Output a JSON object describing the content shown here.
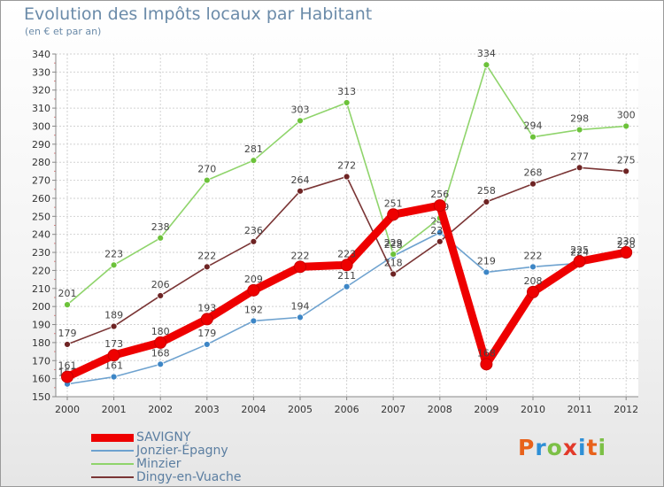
{
  "chart_data": {
    "type": "line",
    "title": "Evolution des Impôts locaux par Habitant",
    "subtitle": "(en € et par an)",
    "xlabel": "",
    "ylabel": "",
    "categories": [
      "2000",
      "2001",
      "2002",
      "2003",
      "2004",
      "2005",
      "2006",
      "2007",
      "2008",
      "2009",
      "2010",
      "2011",
      "2012"
    ],
    "ylim": [
      150,
      340
    ],
    "yticks": [
      150,
      160,
      170,
      180,
      190,
      200,
      210,
      220,
      230,
      240,
      250,
      260,
      270,
      280,
      290,
      300,
      310,
      320,
      330,
      340
    ],
    "grid": true,
    "legend_position": "bottom-left",
    "series": [
      {
        "name": "Jonzier-Épagny",
        "color": "#6ea2cf",
        "marker": "#3d86c6",
        "values": [
          157,
          161,
          168,
          179,
          192,
          194,
          211,
          228,
          241,
          219,
          222,
          224,
          228
        ]
      },
      {
        "name": "Minzier",
        "color": "#8fd46b",
        "marker": "#6cc23a",
        "values": [
          201,
          223,
          238,
          270,
          281,
          303,
          313,
          229,
          249,
          334,
          294,
          298,
          300
        ]
      },
      {
        "name": "Dingy-en-Vuache",
        "color": "#7a3535",
        "marker": "#6e2424",
        "values": [
          179,
          189,
          206,
          222,
          236,
          264,
          272,
          218,
          236,
          258,
          268,
          277,
          275
        ]
      },
      {
        "name": "SAVIGNY",
        "color": "#ee0000",
        "marker": "#ee0000",
        "values": [
          161,
          173,
          180,
          193,
          209,
          222,
          223,
          251,
          256,
          168,
          208,
          225,
          230
        ]
      }
    ]
  },
  "legend": [
    "SAVIGNY",
    "Jonzier-Épagny",
    "Minzier",
    "Dingy-en-Vuache"
  ],
  "legend_colors": [
    "#ee0000",
    "#6ea2cf",
    "#8fd46b",
    "#7a3535"
  ],
  "logo": [
    "P",
    "r",
    "o",
    "x",
    "i",
    "t",
    "i"
  ]
}
